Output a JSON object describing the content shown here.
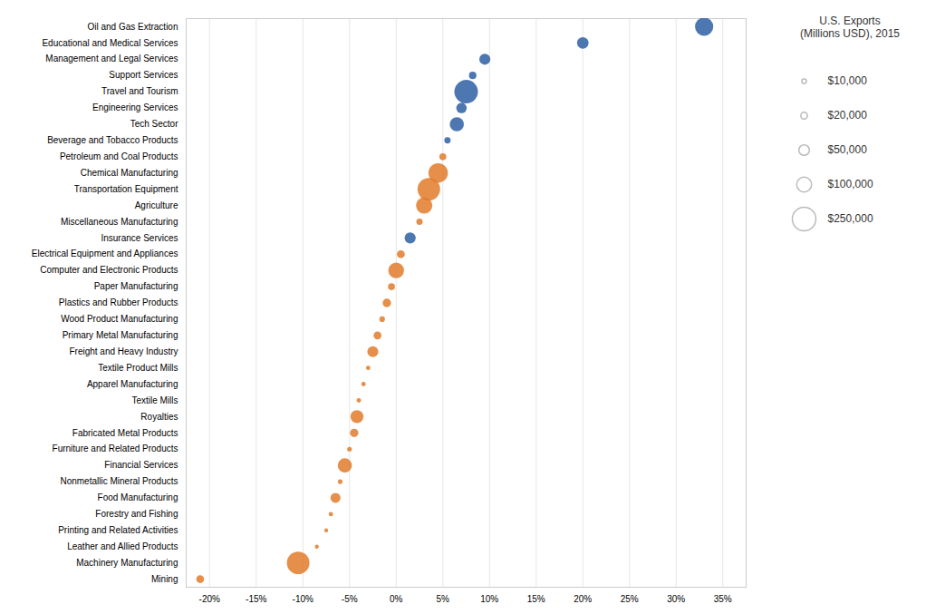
{
  "chart_data": {
    "type": "scatter",
    "categories": [
      "Oil and Gas Extraction",
      "Educational and Medical Services",
      "Management and Legal Services",
      "Support Services",
      "Travel and Tourism",
      "Engineering Services",
      "Tech Sector",
      "Beverage and Tobacco Products",
      "Petroleum and Coal Products",
      "Chemical Manufacturing",
      "Transportation Equipment",
      "Agriculture",
      "Miscellaneous Manufacturing",
      "Insurance Services",
      "Electrical Equipment and Appliances",
      "Computer and Electronic Products",
      "Paper Manufacturing",
      "Plastics and Rubber Products",
      "Wood Product Manufacturing",
      "Primary Metal Manufacturing",
      "Freight and Heavy Industry",
      "Textile Product Mills",
      "Apparel Manufacturing",
      "Textile Mills",
      "Royalties",
      "Fabricated Metal Products",
      "Furniture and Related Products",
      "Financial Services",
      "Nonmetallic Mineral Products",
      "Food Manufacturing",
      "Forestry and Fishing",
      "Printing and Related Activities",
      "Leather and Allied Products",
      "Machinery Manufacturing",
      "Mining"
    ],
    "values": [
      0.33,
      0.2,
      0.095,
      0.082,
      0.075,
      0.07,
      0.065,
      0.055,
      0.05,
      0.045,
      0.035,
      0.03,
      0.025,
      0.015,
      0.005,
      0,
      -0.005,
      -0.01,
      -0.015,
      -0.02,
      -0.025,
      -0.03,
      -0.035,
      -0.04,
      -0.042,
      -0.045,
      -0.05,
      -0.055,
      -0.06,
      -0.065,
      -0.07,
      -0.075,
      -0.085,
      -0.105,
      -0.21
    ],
    "sizes": [
      150000,
      60000,
      55000,
      25000,
      250000,
      50000,
      90000,
      18000,
      22000,
      170000,
      230000,
      120000,
      18000,
      55000,
      28000,
      110000,
      22000,
      32000,
      14000,
      28000,
      55000,
      9000,
      9000,
      9000,
      75000,
      32000,
      10000,
      90000,
      10000,
      45000,
      9000,
      7000,
      7000,
      230000,
      28000
    ],
    "colors": [
      "#2e5fa3",
      "#2e5fa3",
      "#2e5fa3",
      "#2e5fa3",
      "#2e5fa3",
      "#2e5fa3",
      "#2e5fa3",
      "#2e5fa3",
      "#e07b2a",
      "#e07b2a",
      "#e07b2a",
      "#e07b2a",
      "#e07b2a",
      "#2e5fa3",
      "#e07b2a",
      "#e07b2a",
      "#e07b2a",
      "#e07b2a",
      "#e07b2a",
      "#e07b2a",
      "#e07b2a",
      "#e07b2a",
      "#e07b2a",
      "#e07b2a",
      "#e07b2a",
      "#e07b2a",
      "#e07b2a",
      "#e07b2a",
      "#e07b2a",
      "#e07b2a",
      "#e07b2a",
      "#e07b2a",
      "#e07b2a",
      "#e07b2a",
      "#e07b2a"
    ],
    "xlim": [
      -0.225,
      0.375
    ],
    "xticks": [
      {
        "value": -0.2,
        "label": "-20%"
      },
      {
        "value": -0.15,
        "label": "-15%"
      },
      {
        "value": -0.1,
        "label": "-10%"
      },
      {
        "value": -0.05,
        "label": "-5%"
      },
      {
        "value": 0,
        "label": "0%"
      },
      {
        "value": 0.05,
        "label": "5%"
      },
      {
        "value": 0.1,
        "label": "10%"
      },
      {
        "value": 0.15,
        "label": "15%"
      },
      {
        "value": 0.2,
        "label": "20%"
      },
      {
        "value": 0.25,
        "label": "25%"
      },
      {
        "value": 0.3,
        "label": "30%"
      },
      {
        "value": 0.35,
        "label": "35%"
      }
    ],
    "grid": true,
    "legend": "right",
    "legend_title": "U.S. Exports\n(Millions USD), 2015",
    "legend_sizes": [
      10000,
      20000,
      50000,
      100000,
      250000
    ],
    "legend_labels": [
      "$10,000",
      "$20,000",
      "$50,000",
      "$100,000",
      "$250,000"
    ]
  }
}
